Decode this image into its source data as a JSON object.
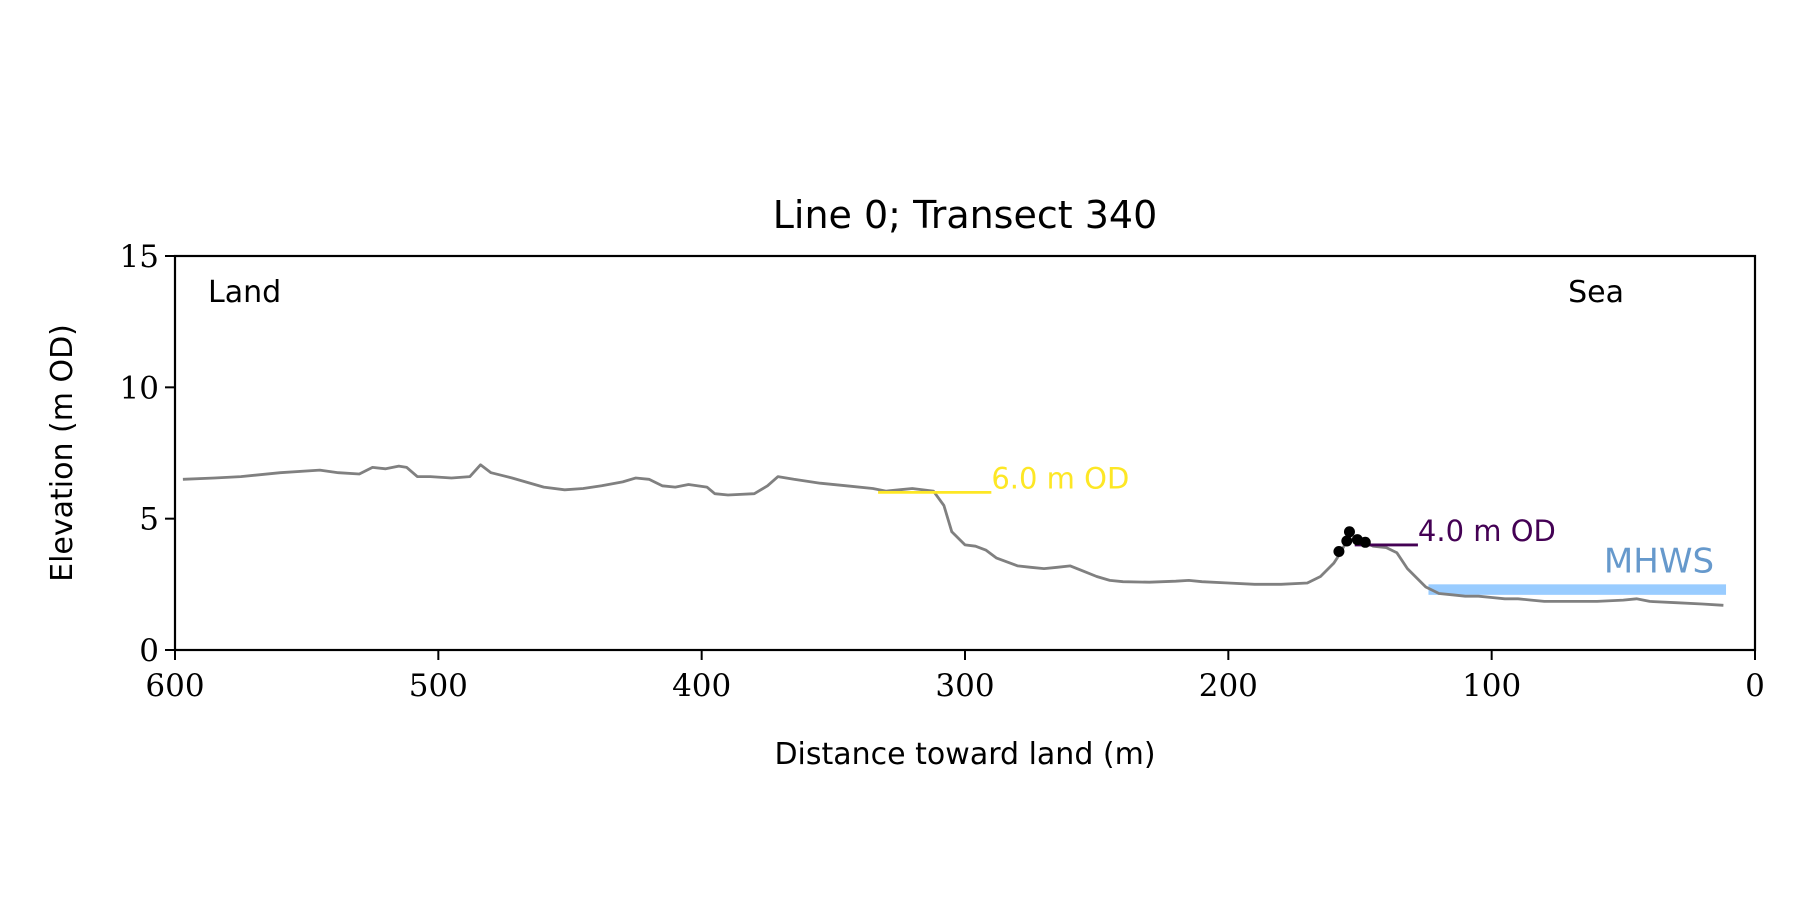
{
  "chart_data": {
    "type": "line",
    "title": "Line 0; Transect 340",
    "xlabel": "Distance toward land (m)",
    "ylabel": "Elevation (m OD)",
    "xlim": [
      600,
      0
    ],
    "ylim": [
      0,
      15
    ],
    "x_inverted": true,
    "xticks": [
      600,
      500,
      400,
      300,
      200,
      100,
      0
    ],
    "yticks": [
      0,
      5,
      10,
      15
    ],
    "grid": false,
    "colors": {
      "profile": "#808080",
      "level_6": "#fde725",
      "level_4": "#440154",
      "mhws_band": "#99ccff",
      "mhws_label": "#6699cc",
      "crest_points": "#000000",
      "axes": "#000000"
    },
    "corner_labels": {
      "left": "Land",
      "right": "Sea"
    },
    "profile": {
      "x": [
        597,
        585,
        575,
        560,
        545,
        538,
        530,
        525,
        520,
        515,
        512,
        508,
        503,
        495,
        488,
        484,
        480,
        476,
        472,
        460,
        452,
        445,
        438,
        430,
        425,
        420,
        415,
        410,
        405,
        398,
        395,
        390,
        380,
        375,
        371,
        365,
        355,
        345,
        335,
        330,
        325,
        320,
        312,
        308,
        305,
        300,
        296,
        292,
        288,
        280,
        275,
        270,
        265,
        260,
        255,
        250,
        245,
        240,
        230,
        220,
        215,
        210,
        200,
        190,
        180,
        170,
        165,
        160,
        158,
        155,
        152,
        148,
        145,
        140,
        136,
        132,
        128,
        125,
        120,
        115,
        110,
        105,
        100,
        95,
        90,
        85,
        80,
        70,
        60,
        50,
        45,
        40,
        30,
        20,
        12
      ],
      "y": [
        6.5,
        6.55,
        6.6,
        6.75,
        6.85,
        6.75,
        6.7,
        6.95,
        6.9,
        7.0,
        6.95,
        6.6,
        6.6,
        6.55,
        6.6,
        7.05,
        6.75,
        6.65,
        6.55,
        6.2,
        6.1,
        6.15,
        6.25,
        6.4,
        6.55,
        6.5,
        6.25,
        6.2,
        6.3,
        6.2,
        5.95,
        5.9,
        5.95,
        6.25,
        6.6,
        6.5,
        6.35,
        6.25,
        6.15,
        6.05,
        6.1,
        6.15,
        6.05,
        5.5,
        4.5,
        4.0,
        3.95,
        3.8,
        3.5,
        3.2,
        3.15,
        3.1,
        3.15,
        3.2,
        3.0,
        2.8,
        2.65,
        2.6,
        2.58,
        2.62,
        2.65,
        2.6,
        2.55,
        2.5,
        2.5,
        2.55,
        2.8,
        3.3,
        3.6,
        4.15,
        4.2,
        4.1,
        3.95,
        3.9,
        3.7,
        3.1,
        2.7,
        2.4,
        2.15,
        2.1,
        2.05,
        2.05,
        2.0,
        1.95,
        1.95,
        1.9,
        1.85,
        1.85,
        1.85,
        1.9,
        1.95,
        1.85,
        1.8,
        1.75,
        1.7
      ]
    },
    "crest_points": {
      "x": [
        158,
        155,
        154,
        151,
        148
      ],
      "y": [
        3.75,
        4.15,
        4.5,
        4.2,
        4.1
      ]
    },
    "levels": [
      {
        "label": "6.0 m OD",
        "y": 6.0,
        "x_from": 333,
        "x_to": 290,
        "color": "#fde725"
      },
      {
        "label": "4.0 m OD",
        "y": 4.0,
        "x_from": 152,
        "x_to": 128,
        "color": "#440154"
      }
    ],
    "mhws": {
      "label": "MHWS",
      "y": 2.1,
      "y_top": 2.5,
      "x_from": 124,
      "x_to": 11
    }
  }
}
